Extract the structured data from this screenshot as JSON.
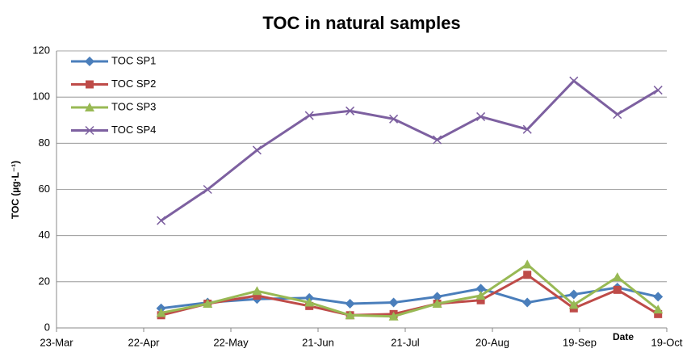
{
  "chart_data": {
    "type": "line",
    "title": "TOC in natural samples",
    "x_label": "Date",
    "y_label": "TOC (µg·L⁻¹)",
    "x": [
      "28-Apr",
      "14-May",
      "31-May",
      "18-Jun",
      "2-Jul",
      "17-Jul",
      "1-Aug",
      "16-Aug",
      "1-Sep",
      "17-Sep",
      "2-Oct",
      "16-Oct"
    ],
    "series": [
      {
        "name": "TOC SP1",
        "color": "#4a7ebb",
        "marker": "diamond",
        "values": [
          8.5,
          11,
          12.5,
          13,
          10.5,
          11,
          13.5,
          17,
          11,
          14.5,
          17.5,
          13.5
        ]
      },
      {
        "name": "TOC SP2",
        "color": "#be4b48",
        "marker": "square",
        "values": [
          5.5,
          10.5,
          14,
          9.5,
          5.5,
          6,
          10.5,
          12,
          23,
          8.5,
          16.5,
          6
        ]
      },
      {
        "name": "TOC SP3",
        "color": "#98b954",
        "marker": "triangle",
        "values": [
          6.5,
          10.5,
          16,
          11,
          5.5,
          5,
          10.5,
          14,
          27.5,
          10,
          22,
          8
        ]
      },
      {
        "name": "TOC SP4",
        "color": "#7d60a0",
        "marker": "x",
        "values": [
          46.5,
          60,
          77,
          92,
          94,
          90.5,
          81.5,
          91.5,
          86,
          107,
          92.5,
          103
        ]
      }
    ],
    "xlim": [
      "23-Mar",
      "19-Oct"
    ],
    "xticks": [
      "23-Mar",
      "22-Apr",
      "22-May",
      "21-Jun",
      "21-Jul",
      "20-Aug",
      "19-Sep",
      "19-Oct"
    ],
    "ylim": [
      0,
      120
    ],
    "yticks": [
      0,
      20,
      40,
      60,
      80,
      100,
      120
    ],
    "grid": true,
    "legend": "top-left"
  }
}
